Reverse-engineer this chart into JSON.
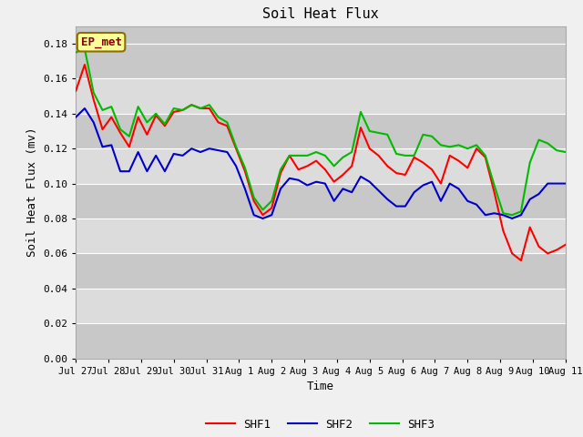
{
  "title": "Soil Heat Flux",
  "xlabel": "Time",
  "ylabel": "Soil Heat Flux (mv)",
  "ylim": [
    0.0,
    0.19
  ],
  "yticks": [
    0.0,
    0.02,
    0.04,
    0.06,
    0.08,
    0.1,
    0.12,
    0.14,
    0.16,
    0.18
  ],
  "annotation_text": "EP_met",
  "annotation_color": "#8B0000",
  "annotation_bg": "#FFFF99",
  "annotation_border": "#8B7000",
  "colors": {
    "SHF1": "#FF0000",
    "SHF2": "#0000CC",
    "SHF3": "#00BB00"
  },
  "bg_color": "#F0F0F0",
  "plot_bg_color": "#C8C8C8",
  "band_light": "#D4D4D4",
  "band_dark": "#C0C0C0",
  "xtick_labels": [
    "Jul 27",
    "Jul 28",
    "Jul 29",
    "Jul 30",
    "Jul 31",
    "Aug 1",
    "Aug 2",
    "Aug 3",
    "Aug 4",
    "Aug 5",
    "Aug 6",
    "Aug 7",
    "Aug 8",
    "Aug 9",
    "Aug 10",
    "Aug 11"
  ],
  "SHF1": [
    0.153,
    0.168,
    0.148,
    0.131,
    0.138,
    0.129,
    0.121,
    0.138,
    0.128,
    0.139,
    0.133,
    0.141,
    0.142,
    0.145,
    0.143,
    0.143,
    0.135,
    0.133,
    0.12,
    0.107,
    0.09,
    0.082,
    0.086,
    0.106,
    0.116,
    0.108,
    0.11,
    0.113,
    0.108,
    0.101,
    0.105,
    0.11,
    0.132,
    0.12,
    0.116,
    0.11,
    0.106,
    0.105,
    0.115,
    0.112,
    0.108,
    0.1,
    0.116,
    0.113,
    0.109,
    0.12,
    0.115,
    0.095,
    0.073,
    0.06,
    0.056,
    0.075,
    0.064,
    0.06,
    0.062,
    0.065
  ],
  "SHF2": [
    0.138,
    0.143,
    0.135,
    0.121,
    0.122,
    0.107,
    0.107,
    0.118,
    0.107,
    0.116,
    0.107,
    0.117,
    0.116,
    0.12,
    0.118,
    0.12,
    0.119,
    0.118,
    0.11,
    0.097,
    0.082,
    0.08,
    0.082,
    0.097,
    0.103,
    0.102,
    0.099,
    0.101,
    0.1,
    0.09,
    0.097,
    0.095,
    0.104,
    0.101,
    0.096,
    0.091,
    0.087,
    0.087,
    0.095,
    0.099,
    0.101,
    0.09,
    0.1,
    0.097,
    0.09,
    0.088,
    0.082,
    0.083,
    0.082,
    0.08,
    0.082,
    0.091,
    0.094,
    0.1,
    0.1,
    0.1
  ],
  "SHF3": [
    0.175,
    0.177,
    0.152,
    0.142,
    0.144,
    0.131,
    0.127,
    0.144,
    0.135,
    0.14,
    0.134,
    0.143,
    0.142,
    0.145,
    0.143,
    0.145,
    0.138,
    0.135,
    0.121,
    0.109,
    0.092,
    0.085,
    0.09,
    0.108,
    0.116,
    0.116,
    0.116,
    0.118,
    0.116,
    0.11,
    0.115,
    0.118,
    0.141,
    0.13,
    0.129,
    0.128,
    0.117,
    0.116,
    0.116,
    0.128,
    0.127,
    0.122,
    0.121,
    0.122,
    0.12,
    0.122,
    0.116,
    0.099,
    0.083,
    0.082,
    0.084,
    0.112,
    0.125,
    0.123,
    0.119,
    0.118
  ]
}
